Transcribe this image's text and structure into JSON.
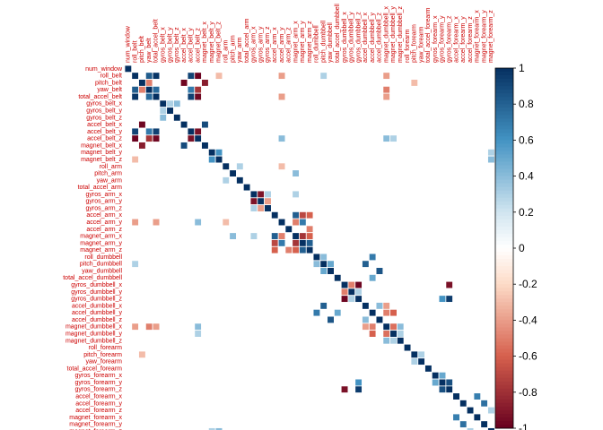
{
  "chart_data": {
    "type": "heatmap",
    "title": "",
    "xlabel": "",
    "ylabel": "",
    "labels_position": "top-and-left",
    "legend_placement": "right",
    "value_range": [
      -1,
      1
    ],
    "colorbar": {
      "ticks": [
        "1",
        "0.8",
        "0.6",
        "0.4",
        "0.2",
        "0",
        "-0.2",
        "-0.4",
        "-0.6",
        "-0.8",
        "-1"
      ],
      "colors": {
        "neg_full": "#67001f",
        "neg_mid": "#d6604d",
        "neg_light": "#fddbc7",
        "zero": "#ffffff",
        "pos_light": "#d1e5f0",
        "pos_mid": "#4393c3",
        "pos_full": "#053061"
      }
    },
    "label_color": "#cc0000",
    "variables": [
      "num_window",
      "roll_belt",
      "pitch_belt",
      "yaw_belt",
      "total_accel_belt",
      "gyros_belt_x",
      "gyros_belt_y",
      "gyros_belt_z",
      "accel_belt_x",
      "accel_belt_y",
      "accel_belt_z",
      "magnet_belt_x",
      "magnet_belt_y",
      "magnet_belt_z",
      "roll_arm",
      "pitch_arm",
      "yaw_arm",
      "total_accel_arm",
      "gyros_arm_x",
      "gyros_arm_y",
      "gyros_arm_z",
      "accel_arm_x",
      "accel_arm_y",
      "accel_arm_z",
      "magnet_arm_x",
      "magnet_arm_y",
      "magnet_arm_z",
      "roll_dumbbell",
      "pitch_dumbbell",
      "yaw_dumbbell",
      "total_accel_dumbbell",
      "gyros_dumbbell_x",
      "gyros_dumbbell_y",
      "gyros_dumbbell_z",
      "accel_dumbbell_x",
      "accel_dumbbell_y",
      "accel_dumbbell_z",
      "magnet_dumbbell_x",
      "magnet_dumbbell_y",
      "magnet_dumbbell_z",
      "roll_forearm",
      "pitch_forearm",
      "yaw_forearm",
      "total_accel_forearm",
      "gyros_forearm_x",
      "gyros_forearm_y",
      "gyros_forearm_z",
      "accel_forearm_x",
      "accel_forearm_y",
      "accel_forearm_z",
      "magnet_forearm_x",
      "magnet_forearm_y",
      "magnet_forearm_z"
    ],
    "strong_correlations": [
      {
        "a": "roll_belt",
        "b": "yaw_belt",
        "value": 0.82
      },
      {
        "a": "roll_belt",
        "b": "total_accel_belt",
        "value": 0.98
      },
      {
        "a": "roll_belt",
        "b": "accel_belt_y",
        "value": 0.92
      },
      {
        "a": "roll_belt",
        "b": "accel_belt_z",
        "value": -0.99
      },
      {
        "a": "roll_belt",
        "b": "magnet_belt_z",
        "value": -0.3
      },
      {
        "a": "pitch_belt",
        "b": "accel_belt_x",
        "value": -0.97
      },
      {
        "a": "pitch_belt",
        "b": "magnet_belt_x",
        "value": -0.88
      },
      {
        "a": "pitch_belt",
        "b": "yaw_belt",
        "value": -0.5
      },
      {
        "a": "yaw_belt",
        "b": "total_accel_belt",
        "value": 0.76
      },
      {
        "a": "yaw_belt",
        "b": "accel_belt_z",
        "value": -0.78
      },
      {
        "a": "yaw_belt",
        "b": "accel_belt_y",
        "value": 0.7
      },
      {
        "a": "total_accel_belt",
        "b": "accel_belt_y",
        "value": 0.93
      },
      {
        "a": "total_accel_belt",
        "b": "accel_belt_z",
        "value": -0.97
      },
      {
        "a": "accel_belt_y",
        "b": "accel_belt_z",
        "value": -0.93
      },
      {
        "a": "accel_belt_x",
        "b": "magnet_belt_x",
        "value": 0.89
      },
      {
        "a": "gyros_belt_x",
        "b": "gyros_belt_z",
        "value": 0.4
      },
      {
        "a": "gyros_belt_x",
        "b": "gyros_belt_y",
        "value": 0.3
      },
      {
        "a": "magnet_belt_y",
        "b": "magnet_belt_z",
        "value": 0.6
      },
      {
        "a": "roll_arm",
        "b": "yaw_arm",
        "value": 0.3
      },
      {
        "a": "gyros_arm_x",
        "b": "gyros_arm_y",
        "value": -0.92
      },
      {
        "a": "gyros_arm_y",
        "b": "gyros_arm_z",
        "value": -0.4
      },
      {
        "a": "gyros_arm_x",
        "b": "gyros_arm_z",
        "value": 0.3
      },
      {
        "a": "accel_arm_x",
        "b": "magnet_arm_x",
        "value": 0.81
      },
      {
        "a": "accel_arm_x",
        "b": "magnet_arm_y",
        "value": -0.7
      },
      {
        "a": "accel_arm_x",
        "b": "magnet_arm_z",
        "value": -0.6
      },
      {
        "a": "accel_arm_y",
        "b": "magnet_arm_x",
        "value": -0.5
      },
      {
        "a": "accel_arm_y",
        "b": "magnet_arm_y",
        "value": 0.7
      },
      {
        "a": "accel_arm_z",
        "b": "magnet_arm_z",
        "value": -0.5
      },
      {
        "a": "magnet_arm_x",
        "b": "magnet_arm_y",
        "value": -0.78
      },
      {
        "a": "magnet_arm_y",
        "b": "magnet_arm_z",
        "value": 0.81
      },
      {
        "a": "magnet_arm_x",
        "b": "magnet_arm_z",
        "value": -0.6
      },
      {
        "a": "pitch_arm",
        "b": "magnet_arm_x",
        "value": 0.4
      },
      {
        "a": "roll_dumbbell",
        "b": "pitch_dumbbell",
        "value": 0.4
      },
      {
        "a": "pitch_dumbbell",
        "b": "yaw_dumbbell",
        "value": 0.5
      },
      {
        "a": "yaw_dumbbell",
        "b": "accel_dumbbell_z",
        "value": 0.85
      },
      {
        "a": "pitch_dumbbell",
        "b": "accel_dumbbell_x",
        "value": 0.81
      },
      {
        "a": "roll_dumbbell",
        "b": "accel_dumbbell_y",
        "value": 0.7
      },
      {
        "a": "total_accel_dumbbell",
        "b": "accel_dumbbell_y",
        "value": 0.5
      },
      {
        "a": "gyros_dumbbell_x",
        "b": "gyros_dumbbell_y",
        "value": -0.5
      },
      {
        "a": "gyros_dumbbell_x",
        "b": "gyros_dumbbell_z",
        "value": -0.98
      },
      {
        "a": "gyros_dumbbell_y",
        "b": "gyros_dumbbell_z",
        "value": 0.3
      },
      {
        "a": "gyros_dumbbell_x",
        "b": "gyros_forearm_z",
        "value": -0.93
      },
      {
        "a": "gyros_dumbbell_z",
        "b": "gyros_forearm_z",
        "value": 0.95
      },
      {
        "a": "gyros_dumbbell_z",
        "b": "gyros_forearm_y",
        "value": 0.6
      },
      {
        "a": "accel_dumbbell_x",
        "b": "accel_dumbbell_z",
        "value": 0.4
      },
      {
        "a": "accel_dumbbell_x",
        "b": "magnet_dumbbell_x",
        "value": -0.4
      },
      {
        "a": "accel_dumbbell_y",
        "b": "magnet_dumbbell_x",
        "value": -0.5
      },
      {
        "a": "accel_dumbbell_y",
        "b": "magnet_dumbbell_y",
        "value": -0.6
      },
      {
        "a": "magnet_dumbbell_x",
        "b": "magnet_dumbbell_y",
        "value": -0.55
      },
      {
        "a": "magnet_dumbbell_y",
        "b": "magnet_dumbbell_z",
        "value": 0.3
      },
      {
        "a": "magnet_dumbbell_x",
        "b": "magnet_dumbbell_z",
        "value": 0.4
      },
      {
        "a": "pitch_forearm",
        "b": "yaw_forearm",
        "value": 0.3
      },
      {
        "a": "gyros_forearm_x",
        "b": "gyros_forearm_y",
        "value": 0.5
      },
      {
        "a": "gyros_forearm_y",
        "b": "gyros_forearm_z",
        "value": 0.87
      },
      {
        "a": "accel_forearm_x",
        "b": "magnet_forearm_x",
        "value": 0.68
      },
      {
        "a": "accel_forearm_y",
        "b": "magnet_forearm_y",
        "value": 0.74
      },
      {
        "a": "accel_forearm_z",
        "b": "magnet_forearm_z",
        "value": 0.3
      },
      {
        "a": "roll_belt",
        "b": "magnet_dumbbell_x",
        "value": -0.4
      },
      {
        "a": "roll_belt",
        "b": "pitch_dumbbell",
        "value": 0.3
      },
      {
        "a": "yaw_belt",
        "b": "magnet_dumbbell_x",
        "value": -0.5
      },
      {
        "a": "total_accel_belt",
        "b": "magnet_dumbbell_x",
        "value": -0.4
      },
      {
        "a": "accel_belt_z",
        "b": "magnet_dumbbell_x",
        "value": 0.4
      },
      {
        "a": "accel_belt_z",
        "b": "magnet_dumbbell_y",
        "value": 0.3
      },
      {
        "a": "pitch_belt",
        "b": "pitch_forearm",
        "value": -0.3
      },
      {
        "a": "magnet_belt_z",
        "b": "magnet_forearm_z",
        "value": 0.4
      },
      {
        "a": "magnet_belt_y",
        "b": "magnet_forearm_z",
        "value": 0.3
      },
      {
        "a": "accel_arm_y",
        "b": "roll_belt",
        "value": -0.4
      },
      {
        "a": "accel_arm_y",
        "b": "total_accel_belt",
        "value": -0.4
      },
      {
        "a": "accel_arm_y",
        "b": "accel_belt_z",
        "value": 0.4
      },
      {
        "a": "roll_arm",
        "b": "accel_arm_y",
        "value": -0.3
      },
      {
        "a": "magnet_arm_x",
        "b": "gyros_arm_x",
        "value": 0.3
      }
    ]
  }
}
